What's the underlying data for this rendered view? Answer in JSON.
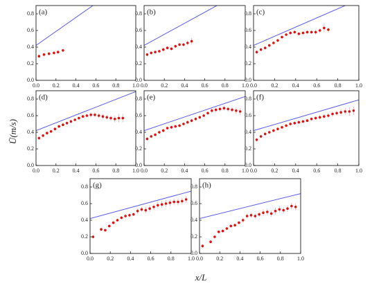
{
  "xlabel": "x/L",
  "ylabel": "Ū(m/s)",
  "chart_data": [
    {
      "type": "scatter",
      "title": "(a)",
      "xlim": [
        0,
        1
      ],
      "ylim": [
        0,
        0.9
      ],
      "xticks": [
        {
          "value": 0,
          "label": "0.0"
        },
        0.2,
        0.4,
        0.6,
        0.8,
        {
          "value": 1,
          "label": "1.0"
        }
      ],
      "yticks": [
        {
          "value": 0,
          "label": "0.0"
        },
        0.2,
        0.4,
        0.6,
        0.8
      ],
      "series": [
        {
          "type": "line",
          "color": "#5a5aee",
          "x": [
            0,
            0.57
          ],
          "values": [
            0.42,
            0.9
          ]
        },
        {
          "type": "points",
          "color": "#e01010",
          "x": [
            0.03,
            0.08,
            0.13,
            0.18,
            0.22,
            0.27
          ],
          "values": [
            0.29,
            0.31,
            0.32,
            0.33,
            0.34,
            0.36
          ],
          "errors": [
            0.02,
            0.02,
            0.02,
            0.02,
            0.02,
            0.02
          ]
        }
      ]
    },
    {
      "type": "scatter",
      "title": "(b)",
      "xlim": [
        0,
        1
      ],
      "ylim": [
        0,
        0.9
      ],
      "xticks": [
        {
          "value": 0,
          "label": "0.0"
        },
        0.2,
        0.4,
        0.6,
        0.8,
        {
          "value": 1,
          "label": "1.0"
        }
      ],
      "yticks": [
        {
          "value": 0,
          "label": "0.0"
        },
        0.2,
        0.4,
        0.6,
        0.8
      ],
      "series": [
        {
          "type": "line",
          "color": "#5a5aee",
          "x": [
            0,
            0.72
          ],
          "values": [
            0.42,
            0.9
          ]
        },
        {
          "type": "points",
          "color": "#e01010",
          "x": [
            0.03,
            0.07,
            0.11,
            0.15,
            0.19,
            0.23,
            0.27,
            0.31,
            0.35,
            0.39,
            0.43,
            0.47
          ],
          "values": [
            0.31,
            0.33,
            0.34,
            0.35,
            0.37,
            0.39,
            0.38,
            0.41,
            0.43,
            0.43,
            0.45,
            0.47
          ],
          "errors": [
            0.02,
            0.02,
            0.02,
            0.02,
            0.02,
            0.02,
            0.02,
            0.02,
            0.02,
            0.02,
            0.03,
            0.04
          ]
        }
      ]
    },
    {
      "type": "scatter",
      "title": "(c)",
      "xlim": [
        0,
        1
      ],
      "ylim": [
        0,
        0.9
      ],
      "xticks": [
        {
          "value": 0,
          "label": "0.0"
        },
        0.2,
        0.4,
        0.6,
        0.8,
        {
          "value": 1,
          "label": "1.0"
        }
      ],
      "yticks": [
        {
          "value": 0,
          "label": "0.0"
        },
        0.2,
        0.4,
        0.6,
        0.8
      ],
      "series": [
        {
          "type": "line",
          "color": "#5a5aee",
          "x": [
            0,
            0.87
          ],
          "values": [
            0.42,
            0.9
          ]
        },
        {
          "type": "points",
          "color": "#e01010",
          "x": [
            0.03,
            0.07,
            0.11,
            0.15,
            0.19,
            0.23,
            0.27,
            0.31,
            0.35,
            0.39,
            0.43,
            0.47,
            0.51,
            0.55,
            0.59,
            0.63,
            0.67,
            0.71
          ],
          "values": [
            0.34,
            0.37,
            0.39,
            0.42,
            0.45,
            0.48,
            0.52,
            0.55,
            0.57,
            0.58,
            0.56,
            0.57,
            0.58,
            0.58,
            0.58,
            0.6,
            0.63,
            0.61
          ],
          "errors": [
            0.02,
            0.02,
            0.02,
            0.02,
            0.02,
            0.02,
            0.02,
            0.02,
            0.02,
            0.02,
            0.02,
            0.02,
            0.02,
            0.02,
            0.03,
            0.03,
            0.05,
            0.03
          ]
        }
      ]
    },
    {
      "type": "scatter",
      "title": "(d)",
      "xlim": [
        0,
        1
      ],
      "ylim": [
        0,
        0.9
      ],
      "xticks": [
        {
          "value": 0,
          "label": "0.0"
        },
        0.2,
        0.4,
        0.6,
        0.8,
        {
          "value": 1,
          "label": "1.0"
        }
      ],
      "yticks": [
        {
          "value": 0,
          "label": "0.0"
        },
        0.2,
        0.4,
        0.6,
        0.8
      ],
      "series": [
        {
          "type": "line",
          "color": "#5a5aee",
          "x": [
            0,
            1
          ],
          "values": [
            0.42,
            0.89
          ]
        },
        {
          "type": "points",
          "color": "#e01010",
          "x": [
            0.03,
            0.07,
            0.11,
            0.15,
            0.19,
            0.23,
            0.27,
            0.31,
            0.35,
            0.39,
            0.43,
            0.47,
            0.51,
            0.55,
            0.59,
            0.63,
            0.67,
            0.71,
            0.75,
            0.79,
            0.83,
            0.87
          ],
          "values": [
            0.33,
            0.36,
            0.39,
            0.41,
            0.44,
            0.47,
            0.49,
            0.51,
            0.53,
            0.55,
            0.57,
            0.59,
            0.6,
            0.61,
            0.61,
            0.6,
            0.59,
            0.58,
            0.57,
            0.56,
            0.57,
            0.57
          ],
          "errors": [
            0.02,
            0.02,
            0.02,
            0.02,
            0.02,
            0.02,
            0.02,
            0.02,
            0.02,
            0.02,
            0.02,
            0.02,
            0.02,
            0.03,
            0.03,
            0.03,
            0.03,
            0.03,
            0.03,
            0.04,
            0.05,
            0.05
          ]
        }
      ]
    },
    {
      "type": "scatter",
      "title": "(e)",
      "xlim": [
        0,
        1
      ],
      "ylim": [
        0,
        0.9
      ],
      "xticks": [
        {
          "value": 0,
          "label": "0.0"
        },
        0.2,
        0.4,
        0.6,
        0.8,
        {
          "value": 1,
          "label": "1.0"
        }
      ],
      "yticks": [
        {
          "value": 0,
          "label": "0.0"
        },
        0.2,
        0.4,
        0.6,
        0.8
      ],
      "series": [
        {
          "type": "line",
          "color": "#5a5aee",
          "x": [
            0,
            1
          ],
          "values": [
            0.42,
            0.83
          ]
        },
        {
          "type": "points",
          "color": "#e01010",
          "x": [
            0.03,
            0.07,
            0.11,
            0.15,
            0.19,
            0.23,
            0.27,
            0.31,
            0.35,
            0.39,
            0.43,
            0.47,
            0.51,
            0.55,
            0.59,
            0.63,
            0.67,
            0.71,
            0.75,
            0.79,
            0.83,
            0.87,
            0.91,
            0.95
          ],
          "values": [
            0.32,
            0.35,
            0.37,
            0.4,
            0.42,
            0.45,
            0.46,
            0.47,
            0.48,
            0.5,
            0.52,
            0.54,
            0.56,
            0.58,
            0.6,
            0.63,
            0.66,
            0.67,
            0.68,
            0.69,
            0.68,
            0.67,
            0.66,
            0.65
          ],
          "errors": [
            0.02,
            0.02,
            0.02,
            0.02,
            0.02,
            0.02,
            0.02,
            0.02,
            0.02,
            0.02,
            0.02,
            0.02,
            0.02,
            0.02,
            0.02,
            0.02,
            0.03,
            0.03,
            0.03,
            0.03,
            0.03,
            0.03,
            0.04,
            0.04
          ]
        }
      ]
    },
    {
      "type": "scatter",
      "title": "(f)",
      "xlim": [
        0,
        1
      ],
      "ylim": [
        0,
        0.9
      ],
      "xticks": [
        {
          "value": 0,
          "label": "0.0"
        },
        0.2,
        0.4,
        0.6,
        0.8,
        {
          "value": 1,
          "label": "1.0"
        }
      ],
      "yticks": [
        {
          "value": 0,
          "label": "0.0"
        },
        0.2,
        0.4,
        0.6,
        0.8
      ],
      "series": [
        {
          "type": "line",
          "color": "#5a5aee",
          "x": [
            0,
            1
          ],
          "values": [
            0.42,
            0.79
          ]
        },
        {
          "type": "points",
          "color": "#e01010",
          "x": [
            0.03,
            0.07,
            0.11,
            0.15,
            0.19,
            0.23,
            0.27,
            0.31,
            0.35,
            0.39,
            0.43,
            0.47,
            0.51,
            0.55,
            0.59,
            0.63,
            0.67,
            0.71,
            0.75,
            0.79,
            0.83,
            0.87,
            0.91,
            0.95
          ],
          "values": [
            0.31,
            0.35,
            0.38,
            0.4,
            0.42,
            0.44,
            0.46,
            0.48,
            0.5,
            0.51,
            0.52,
            0.53,
            0.54,
            0.56,
            0.57,
            0.58,
            0.59,
            0.6,
            0.62,
            0.63,
            0.64,
            0.65,
            0.65,
            0.66
          ],
          "errors": [
            0.02,
            0.02,
            0.02,
            0.02,
            0.02,
            0.02,
            0.02,
            0.02,
            0.02,
            0.02,
            0.02,
            0.02,
            0.02,
            0.02,
            0.02,
            0.03,
            0.03,
            0.03,
            0.03,
            0.03,
            0.04,
            0.04,
            0.05,
            0.05
          ]
        }
      ]
    },
    {
      "type": "scatter",
      "title": "(g)",
      "xlim": [
        0,
        1
      ],
      "ylim": [
        0,
        0.9
      ],
      "xticks": [
        {
          "value": 0,
          "label": "0.0"
        },
        0.2,
        0.4,
        0.6,
        0.8,
        {
          "value": 1,
          "label": "1.0"
        }
      ],
      "yticks": [
        {
          "value": 0,
          "label": "0.0"
        },
        0.2,
        0.4,
        0.6,
        0.8
      ],
      "series": [
        {
          "type": "line",
          "color": "#5a5aee",
          "x": [
            0,
            1
          ],
          "values": [
            0.42,
            0.75
          ]
        },
        {
          "type": "points",
          "color": "#e01010",
          "x": [
            0.03,
            0.11,
            0.15,
            0.19,
            0.23,
            0.27,
            0.31,
            0.35,
            0.39,
            0.43,
            0.47,
            0.51,
            0.55,
            0.59,
            0.63,
            0.67,
            0.71,
            0.75,
            0.79,
            0.83,
            0.87,
            0.91,
            0.95
          ],
          "values": [
            0.2,
            0.29,
            0.28,
            0.33,
            0.37,
            0.4,
            0.43,
            0.45,
            0.46,
            0.47,
            0.51,
            0.53,
            0.52,
            0.54,
            0.56,
            0.58,
            0.59,
            0.6,
            0.61,
            0.62,
            0.62,
            0.63,
            0.65
          ],
          "errors": [
            0.02,
            0.02,
            0.02,
            0.02,
            0.02,
            0.02,
            0.02,
            0.02,
            0.02,
            0.02,
            0.03,
            0.03,
            0.04,
            0.04,
            0.04,
            0.04,
            0.04,
            0.04,
            0.04,
            0.04,
            0.04,
            0.04,
            0.04
          ]
        }
      ]
    },
    {
      "type": "scatter",
      "title": "(h)",
      "xlim": [
        0,
        1
      ],
      "ylim": [
        0,
        0.9
      ],
      "xticks": [
        {
          "value": 0,
          "label": "0.0"
        },
        0.2,
        0.4,
        0.6,
        0.8,
        {
          "value": 1,
          "label": "1.0"
        }
      ],
      "yticks": [
        {
          "value": 0,
          "label": "0.0"
        },
        0.2,
        0.4,
        0.6,
        0.8
      ],
      "series": [
        {
          "type": "line",
          "color": "#5a5aee",
          "x": [
            0,
            1
          ],
          "values": [
            0.42,
            0.72
          ]
        },
        {
          "type": "points",
          "color": "#e01010",
          "x": [
            0.03,
            0.11,
            0.15,
            0.19,
            0.23,
            0.27,
            0.31,
            0.35,
            0.39,
            0.43,
            0.47,
            0.51,
            0.55,
            0.59,
            0.63,
            0.67,
            0.71,
            0.75,
            0.79,
            0.83,
            0.87,
            0.91,
            0.95
          ],
          "values": [
            0.09,
            0.14,
            0.2,
            0.26,
            0.27,
            0.3,
            0.33,
            0.34,
            0.37,
            0.4,
            0.45,
            0.46,
            0.45,
            0.47,
            0.49,
            0.5,
            0.48,
            0.51,
            0.53,
            0.52,
            0.54,
            0.57,
            0.56
          ],
          "errors": [
            0.02,
            0.02,
            0.02,
            0.02,
            0.02,
            0.02,
            0.02,
            0.02,
            0.02,
            0.03,
            0.03,
            0.03,
            0.03,
            0.03,
            0.04,
            0.04,
            0.04,
            0.04,
            0.04,
            0.04,
            0.04,
            0.04,
            0.04
          ]
        }
      ]
    }
  ]
}
